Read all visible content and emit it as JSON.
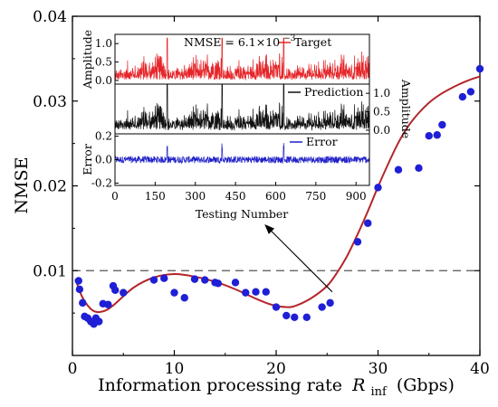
{
  "chart_data": {
    "type": "scatter",
    "xlabel": "Information processing rate",
    "xlabel_symbol": "R",
    "xlabel_subscript": "inf",
    "xlabel_unit": "(Gbps)",
    "ylabel": "NMSE",
    "xlim": [
      0,
      40
    ],
    "ylim": [
      0,
      0.04
    ],
    "xticks": [
      0,
      10,
      20,
      30,
      40
    ],
    "yticks": [
      0.01,
      0.02,
      0.03,
      0.04
    ],
    "ytick_labels": [
      "0.01",
      "0.02",
      "0.03",
      "0.04"
    ],
    "threshold_line": 0.01,
    "series": [
      {
        "kind": "points",
        "color": "#1f1fd6",
        "points": [
          [
            0.6,
            0.0088
          ],
          [
            0.7,
            0.0078
          ],
          [
            1.0,
            0.0062
          ],
          [
            1.2,
            0.0046
          ],
          [
            1.5,
            0.0044
          ],
          [
            1.8,
            0.004
          ],
          [
            2.1,
            0.0037
          ],
          [
            2.3,
            0.0044
          ],
          [
            2.6,
            0.004
          ],
          [
            3.0,
            0.0061
          ],
          [
            3.5,
            0.006
          ],
          [
            4.0,
            0.0082
          ],
          [
            4.2,
            0.0077
          ],
          [
            5.0,
            0.0074
          ],
          [
            8.0,
            0.0089
          ],
          [
            9.0,
            0.0091
          ],
          [
            10.0,
            0.0074
          ],
          [
            11.0,
            0.0068
          ],
          [
            12.0,
            0.009
          ],
          [
            13.0,
            0.0089
          ],
          [
            14.0,
            0.0086
          ],
          [
            14.3,
            0.0085
          ],
          [
            16.0,
            0.0086
          ],
          [
            17.0,
            0.0074
          ],
          [
            18.0,
            0.0075
          ],
          [
            19.0,
            0.0075
          ],
          [
            20.0,
            0.0057
          ],
          [
            21.0,
            0.0047
          ],
          [
            21.8,
            0.0045
          ],
          [
            23.0,
            0.0045
          ],
          [
            24.5,
            0.0057
          ],
          [
            25.3,
            0.0062
          ],
          [
            28.0,
            0.0134
          ],
          [
            29.0,
            0.0156
          ],
          [
            30.0,
            0.0198
          ],
          [
            32.0,
            0.0219
          ],
          [
            34.0,
            0.0221
          ],
          [
            35.0,
            0.0259
          ],
          [
            35.8,
            0.026
          ],
          [
            36.3,
            0.0272
          ],
          [
            38.3,
            0.0305
          ],
          [
            39.1,
            0.0311
          ],
          [
            40.0,
            0.0338
          ]
        ]
      },
      {
        "kind": "fit-curve",
        "color": "#b3262b",
        "points": [
          [
            0.3,
            0.009
          ],
          [
            1.0,
            0.0068
          ],
          [
            2.0,
            0.0053
          ],
          [
            3.0,
            0.0052
          ],
          [
            4.0,
            0.0059
          ],
          [
            6.0,
            0.008
          ],
          [
            8.0,
            0.0092
          ],
          [
            10.0,
            0.0096
          ],
          [
            12.0,
            0.0093
          ],
          [
            14.0,
            0.0087
          ],
          [
            16.0,
            0.0078
          ],
          [
            18.0,
            0.0067
          ],
          [
            19.5,
            0.006
          ],
          [
            21.0,
            0.0057
          ],
          [
            22.0,
            0.0059
          ],
          [
            23.5,
            0.0068
          ],
          [
            25.0,
            0.0082
          ],
          [
            26.0,
            0.0098
          ],
          [
            27.0,
            0.0118
          ],
          [
            28.0,
            0.0143
          ],
          [
            29.0,
            0.017
          ],
          [
            30.0,
            0.0199
          ],
          [
            31.0,
            0.0226
          ],
          [
            32.0,
            0.0251
          ],
          [
            33.0,
            0.0271
          ],
          [
            34.0,
            0.0286
          ],
          [
            35.0,
            0.0298
          ],
          [
            36.0,
            0.0307
          ],
          [
            37.0,
            0.0314
          ],
          [
            38.0,
            0.032
          ],
          [
            39.0,
            0.0325
          ],
          [
            40.0,
            0.0329
          ]
        ]
      }
    ],
    "inset": {
      "nmse_text": "NMSE = 6.1×10",
      "nmse_exponent": "−3",
      "x_label": "Testing Number",
      "x_ticks": [
        0,
        150,
        300,
        450,
        600,
        750,
        900
      ],
      "x_range": [
        0,
        950
      ],
      "panels": [
        {
          "name": "Target",
          "ylabel": "Amplitude",
          "yticks": [
            "0.0",
            "0.5",
            "1.0"
          ],
          "ytick_values": [
            0.0,
            0.5,
            1.0
          ],
          "yrange": [
            -0.1,
            1.25
          ],
          "color": "#e5262a",
          "axis_side": "left"
        },
        {
          "name": "Prediction",
          "ylabel": "Amplitude",
          "yticks": [
            "0.0",
            "0.5",
            "1.0"
          ],
          "ytick_values": [
            0.0,
            0.5,
            1.0
          ],
          "yrange": [
            -0.1,
            1.25
          ],
          "color": "#111111",
          "axis_side": "right"
        },
        {
          "name": "Error",
          "ylabel": "Error",
          "yticks": [
            "-0.2",
            "0.0",
            "0.2"
          ],
          "ytick_values": [
            -0.2,
            0.0,
            0.2
          ],
          "yrange": [
            -0.22,
            0.22
          ],
          "color": "#2020c8",
          "axis_side": "left"
        }
      ],
      "segment_boundaries": [
        195,
        400,
        630
      ],
      "pointer_from": [
        25.5,
        0.0075
      ],
      "pointer_to": [
        19.0,
        0.0153
      ]
    }
  }
}
